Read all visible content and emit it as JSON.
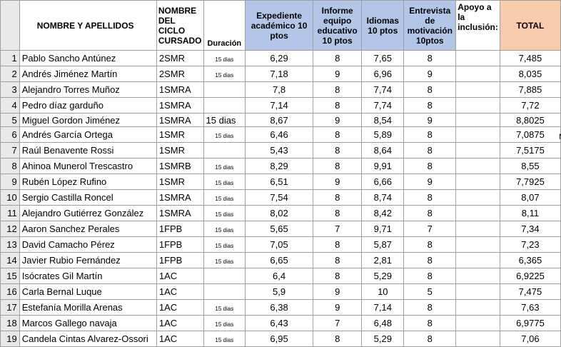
{
  "header": [
    "",
    "NOMBRE Y APELLIDOS",
    "NOMBRE DEL CICLO CURSADO",
    "Duración",
    "Expediente académico 10 ptos",
    "Informe equipo educativo 10 ptos",
    "Idiomas 10 ptos",
    "Entrevista de motivación 10ptos",
    "Apoyo a la inclusión:",
    "TOTAL"
  ],
  "rows": [
    [
      "1",
      "Pablo Sancho Antúnez",
      "2SMR",
      "15 dias",
      "6,29",
      "8",
      "7,65",
      "8",
      "",
      "7,485"
    ],
    [
      "2",
      "Andrés Jiménez Martín",
      "2SMR",
      "15 dias",
      "7,18",
      "9",
      "6,96",
      "9",
      "",
      "8,035"
    ],
    [
      "3",
      "Alejandro Torres Muñoz",
      "1SMRA",
      "",
      "7,8",
      "8",
      "7,74",
      "8",
      "",
      "7,885"
    ],
    [
      "4",
      "Pedro díaz garduño",
      "1SMRA",
      "",
      "7,14",
      "8",
      "7,74",
      "8",
      "",
      "7,72"
    ],
    [
      "5",
      "Miguel Gordon Jiménez",
      "1SMRA",
      "15 dias",
      "8,67",
      "9",
      "8,54",
      "9",
      "",
      "8,8025"
    ],
    [
      "6",
      "Andrés García Ortega",
      "1SMR",
      "15 dias",
      "6,46",
      "8",
      "5,89",
      "8",
      "",
      "7,0875"
    ],
    [
      "7",
      "Raúl Benavente Rossi",
      "1SMR",
      "",
      "5,43",
      "8",
      "8,64",
      "8",
      "",
      "7,5175"
    ],
    [
      "8",
      "Ahinoa Munerol Trescastro",
      "1SMRB",
      "15 dias",
      "8,29",
      "8",
      "9,91",
      "8",
      "",
      "8,55"
    ],
    [
      "9",
      "Rubén López Rufino",
      "1SMR",
      "15 dias",
      "6,51",
      "9",
      "6,66",
      "9",
      "",
      "7,7925"
    ],
    [
      "10",
      "Sergio Castilla Roncel",
      "1SMRA",
      "15 dias",
      "7,54",
      "8",
      "8,74",
      "8",
      "",
      "8,07"
    ],
    [
      "11",
      "Alejandro Gutiérrez González",
      "1SMRA",
      "15 dias",
      "8,02",
      "8",
      "8,42",
      "8",
      "",
      "8,11"
    ],
    [
      "12",
      "Aaron Sanchez Perales",
      "1FPB",
      "15 dias",
      "5,65",
      "7",
      "9,71",
      "7",
      "",
      "7,34"
    ],
    [
      "13",
      "David Camacho Pérez",
      "1FPB",
      "15 dias",
      "7,05",
      "8",
      "5,87",
      "8",
      "",
      "7,23"
    ],
    [
      "14",
      "Javier  Rubio Fernández",
      "1FPB",
      "15 dias",
      "6,65",
      "8",
      "2,81",
      "8",
      "",
      "6,365"
    ],
    [
      "15",
      "Isócrates Gil Martín",
      "1AC",
      "",
      "6,4",
      "8",
      "5,29",
      "8",
      "",
      "6,9225"
    ],
    [
      "16",
      "Carla Bernal Luque",
      "1AC",
      "",
      "5,9",
      "9",
      "10",
      "5",
      "",
      "7,475"
    ],
    [
      "17",
      "Estefanía  Morilla Arenas",
      "1AC",
      "15 dias",
      "6,38",
      "9",
      "7,14",
      "8",
      "",
      "7,63"
    ],
    [
      "18",
      "Marcos Gallego navaja",
      "1AC",
      "15 dias",
      "6,43",
      "7",
      "6,48",
      "8",
      "",
      "6,9775"
    ],
    [
      "19",
      "Candela Cintas Alvarez-Ossori",
      "1AC",
      "15 dias",
      "6,95",
      "8",
      "5,29",
      "8",
      "",
      "7,06"
    ]
  ],
  "overflow": "N"
}
